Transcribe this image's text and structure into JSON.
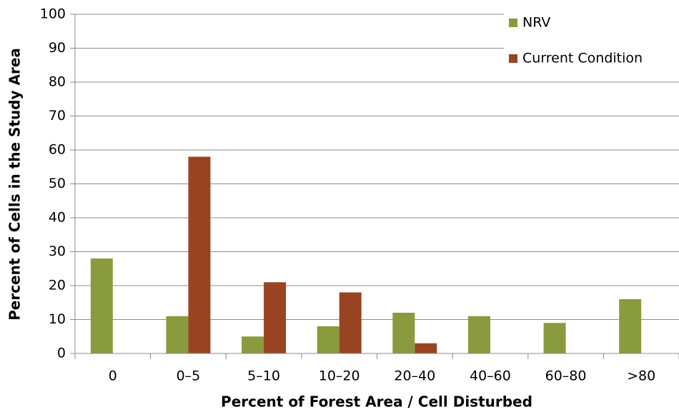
{
  "chart_data": {
    "type": "bar",
    "x_label": "Percent of Forest Area / Cell Disturbed",
    "y_label": "Percent of Cells in the Study Area",
    "categories": [
      "0",
      "0–5",
      "5–10",
      "10–20",
      "20–40",
      "40–60",
      "60–80",
      ">80"
    ],
    "series": [
      {
        "name": "NRV",
        "color": "#8a9a3e",
        "values": [
          28,
          11,
          5,
          8,
          12,
          11,
          9,
          16
        ]
      },
      {
        "name": "Current Condition",
        "color": "#9a4322",
        "values": [
          0,
          58,
          21,
          18,
          3,
          0,
          0,
          0
        ]
      }
    ],
    "ylim": [
      0,
      100
    ],
    "yticks": [
      0,
      10,
      20,
      30,
      40,
      50,
      60,
      70,
      80,
      90,
      100
    ],
    "grid": true,
    "legend": "upper right"
  }
}
